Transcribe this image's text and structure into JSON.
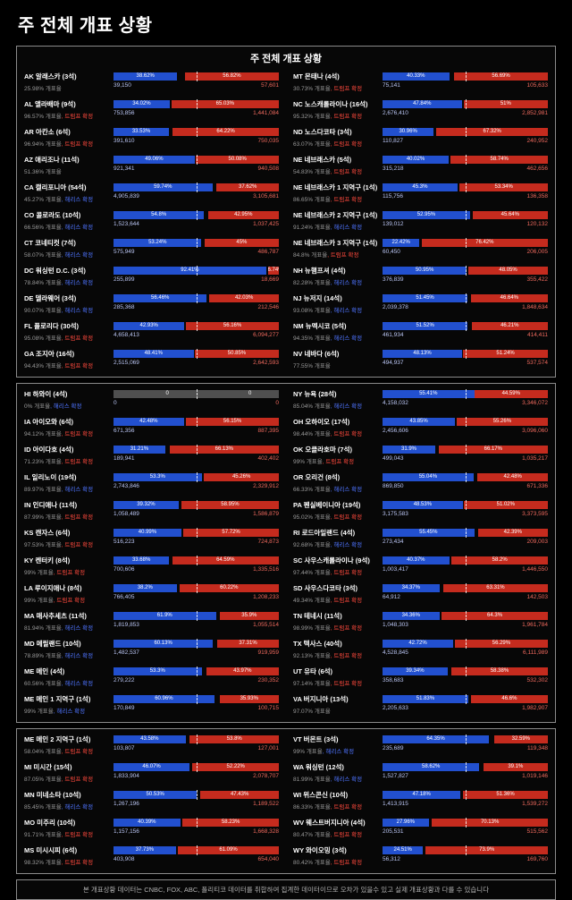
{
  "page_title": "주 전체 개표 상황",
  "panel_title": "주 전체 개표 상황",
  "footer": "본 개표상황 데이터는 CNBC, FOX, ABC, 폴리티코 데이터를 취합하여 집계한 데이터이므로 오차가 있을수 있고 실제 개표상황과 다를 수 있습니다",
  "labels": {
    "progress_label": "개표율",
    "harris_called": "해리스 확정",
    "trump_called": "트럼프 확정"
  },
  "colors": {
    "harris_blue": "#2250cf",
    "trump_red": "#c52b1e",
    "harris_votes_text": "#b9c4f2",
    "trump_votes_text": "#f06a5e",
    "harris_status_text": "#4f74ff",
    "trump_status_text": "#ff4a3d"
  },
  "chart_data": {
    "type": "bar",
    "orientation": "horizontal-stacked",
    "title": "주 전체 개표 상황",
    "series_names": [
      "해리스",
      "트럼프"
    ],
    "value_unit": "%",
    "panels": [
      {
        "left": [
          {
            "code": "AK",
            "name": "알래스카",
            "seats": "3석",
            "progress": "25.98%",
            "status": "none",
            "dem_pct": 38.62,
            "rep_pct": 56.82,
            "dem_votes": "39,150",
            "rep_votes": "57,601"
          },
          {
            "code": "AL",
            "name": "앨라배마",
            "seats": "9석",
            "progress": "96.57%",
            "status": "trump",
            "dem_pct": 34.02,
            "rep_pct": 65.03,
            "dem_votes": "753,856",
            "rep_votes": "1,441,084"
          },
          {
            "code": "AR",
            "name": "아칸소",
            "seats": "6석",
            "progress": "96.94%",
            "status": "trump",
            "dem_pct": 33.53,
            "rep_pct": 64.22,
            "dem_votes": "391,610",
            "rep_votes": "750,035"
          },
          {
            "code": "AZ",
            "name": "애리조나",
            "seats": "11석",
            "progress": "51.36%",
            "status": "none",
            "dem_pct": 49.06,
            "rep_pct": 50.08,
            "dem_votes": "921,341",
            "rep_votes": "940,508"
          },
          {
            "code": "CA",
            "name": "캘리포니아",
            "seats": "54석",
            "progress": "45.27%",
            "status": "harris",
            "dem_pct": 59.74,
            "rep_pct": 37.62,
            "dem_votes": "4,905,839",
            "rep_votes": "3,105,681"
          },
          {
            "code": "CO",
            "name": "콜로라도",
            "seats": "10석",
            "progress": "66.56%",
            "status": "harris",
            "dem_pct": 54.8,
            "rep_pct": 42.95,
            "dem_votes": "1,523,644",
            "rep_votes": "1,037,425"
          },
          {
            "code": "CT",
            "name": "코네티컷",
            "seats": "7석",
            "progress": "58.07%",
            "status": "harris",
            "dem_pct": 53.24,
            "rep_pct": 45,
            "dem_votes": "575,949",
            "rep_votes": "486,787"
          },
          {
            "code": "DC",
            "name": "워싱턴 D.C.",
            "seats": "3석",
            "progress": "78.84%",
            "status": "harris",
            "dem_pct": 92.41,
            "rep_pct": 6.74,
            "dem_votes": "255,899",
            "rep_votes": "18,669"
          },
          {
            "code": "DE",
            "name": "델라웨어",
            "seats": "3석",
            "progress": "90.07%",
            "status": "harris",
            "dem_pct": 56.46,
            "rep_pct": 42.03,
            "dem_votes": "285,368",
            "rep_votes": "212,546"
          },
          {
            "code": "FL",
            "name": "플로리다",
            "seats": "30석",
            "progress": "95.08%",
            "status": "trump",
            "dem_pct": 42.93,
            "rep_pct": 56.16,
            "dem_votes": "4,658,413",
            "rep_votes": "6,094,277"
          },
          {
            "code": "GA",
            "name": "조지아",
            "seats": "16석",
            "progress": "94.43%",
            "status": "trump",
            "dem_pct": 48.41,
            "rep_pct": 50.85,
            "dem_votes": "2,515,069",
            "rep_votes": "2,642,593"
          }
        ],
        "right": [
          {
            "code": "MT",
            "name": "몬태나",
            "seats": "4석",
            "progress": "30.73%",
            "status": "trump",
            "dem_pct": 40.33,
            "rep_pct": 56.69,
            "dem_votes": "75,141",
            "rep_votes": "105,633"
          },
          {
            "code": "NC",
            "name": "노스캐롤라이나",
            "seats": "16석",
            "progress": "95.32%",
            "status": "trump",
            "dem_pct": 47.84,
            "rep_pct": 51,
            "dem_votes": "2,676,410",
            "rep_votes": "2,852,981"
          },
          {
            "code": "ND",
            "name": "노스다코타",
            "seats": "3석",
            "progress": "63.07%",
            "status": "trump",
            "dem_pct": 30.96,
            "rep_pct": 67.32,
            "dem_votes": "110,827",
            "rep_votes": "240,952"
          },
          {
            "code": "NE",
            "name": "네브래스카",
            "seats": "5석",
            "progress": "54.83%",
            "status": "trump",
            "dem_pct": 40.02,
            "rep_pct": 58.74,
            "dem_votes": "315,218",
            "rep_votes": "462,656"
          },
          {
            "code": "NE",
            "name": "네브래스카 1 지역구",
            "seats": "1석",
            "progress": "86.65%",
            "status": "trump",
            "dem_pct": 45.3,
            "rep_pct": 53.34,
            "dem_votes": "115,756",
            "rep_votes": "136,358"
          },
          {
            "code": "NE",
            "name": "네브래스카 2 지역구",
            "seats": "1석",
            "progress": "91.24%",
            "status": "harris",
            "dem_pct": 52.95,
            "rep_pct": 45.64,
            "dem_votes": "139,012",
            "rep_votes": "120,132"
          },
          {
            "code": "NE",
            "name": "네브래스카 3 지역구",
            "seats": "1석",
            "progress": "84.8%",
            "status": "trump",
            "dem_pct": 22.42,
            "rep_pct": 76.42,
            "dem_votes": "60,450",
            "rep_votes": "206,005"
          },
          {
            "code": "NH",
            "name": "뉴햄프셔",
            "seats": "4석",
            "progress": "82.28%",
            "status": "harris",
            "dem_pct": 50.95,
            "rep_pct": 48.05,
            "dem_votes": "376,839",
            "rep_votes": "355,422"
          },
          {
            "code": "NJ",
            "name": "뉴저지",
            "seats": "14석",
            "progress": "93.08%",
            "status": "harris",
            "dem_pct": 51.45,
            "rep_pct": 46.64,
            "dem_votes": "2,039,378",
            "rep_votes": "1,848,634"
          },
          {
            "code": "NM",
            "name": "뉴멕시코",
            "seats": "5석",
            "progress": "94.35%",
            "status": "harris",
            "dem_pct": 51.52,
            "rep_pct": 46.21,
            "dem_votes": "461,934",
            "rep_votes": "414,411"
          },
          {
            "code": "NV",
            "name": "네바다",
            "seats": "6석",
            "progress": "77.55%",
            "status": "none",
            "dem_pct": 48.13,
            "rep_pct": 51.24,
            "dem_votes": "494,937",
            "rep_votes": "537,574"
          }
        ]
      },
      {
        "left": [
          {
            "code": "HI",
            "name": "하와이",
            "seats": "4석",
            "progress": "0%",
            "status": "harris",
            "gray": true,
            "dem_pct": 0,
            "rep_pct": 0,
            "dem_votes": "0",
            "rep_votes": "0"
          },
          {
            "code": "IA",
            "name": "아이오와",
            "seats": "6석",
            "progress": "94.12%",
            "status": "trump",
            "dem_pct": 42.48,
            "rep_pct": 56.15,
            "dem_votes": "671,356",
            "rep_votes": "887,395"
          },
          {
            "code": "ID",
            "name": "아이다호",
            "seats": "4석",
            "progress": "71.23%",
            "status": "trump",
            "dem_pct": 31.21,
            "rep_pct": 66.13,
            "dem_votes": "189,941",
            "rep_votes": "402,402"
          },
          {
            "code": "IL",
            "name": "일리노이",
            "seats": "19석",
            "progress": "89.97%",
            "status": "harris",
            "dem_pct": 53.3,
            "rep_pct": 45.26,
            "dem_votes": "2,743,846",
            "rep_votes": "2,329,912"
          },
          {
            "code": "IN",
            "name": "인디애나",
            "seats": "11석",
            "progress": "87.99%",
            "status": "trump",
            "dem_pct": 39.32,
            "rep_pct": 58.95,
            "dem_votes": "1,058,489",
            "rep_votes": "1,586,879"
          },
          {
            "code": "KS",
            "name": "캔자스",
            "seats": "6석",
            "progress": "97.53%",
            "status": "trump",
            "dem_pct": 40.99,
            "rep_pct": 57.72,
            "dem_votes": "516,223",
            "rep_votes": "724,873"
          },
          {
            "code": "KY",
            "name": "켄터키",
            "seats": "8석",
            "progress": "99%",
            "status": "trump",
            "dem_pct": 33.68,
            "rep_pct": 64.59,
            "dem_votes": "700,606",
            "rep_votes": "1,335,516"
          },
          {
            "code": "LA",
            "name": "루이지애나",
            "seats": "8석",
            "progress": "99%",
            "status": "trump",
            "dem_pct": 38.2,
            "rep_pct": 60.22,
            "dem_votes": "766,405",
            "rep_votes": "1,208,233"
          },
          {
            "code": "MA",
            "name": "매사추세츠",
            "seats": "11석",
            "progress": "81.94%",
            "status": "harris",
            "dem_pct": 61.9,
            "rep_pct": 35.9,
            "dem_votes": "1,819,853",
            "rep_votes": "1,055,514"
          },
          {
            "code": "MD",
            "name": "메릴랜드",
            "seats": "10석",
            "progress": "78.89%",
            "status": "harris",
            "dem_pct": 60.13,
            "rep_pct": 37.31,
            "dem_votes": "1,482,537",
            "rep_votes": "919,959"
          },
          {
            "code": "ME",
            "name": "메인",
            "seats": "4석",
            "progress": "60.56%",
            "status": "harris",
            "dem_pct": 53.3,
            "rep_pct": 43.97,
            "dem_votes": "279,222",
            "rep_votes": "230,352"
          },
          {
            "code": "ME",
            "name": "메인 1 지역구",
            "seats": "1석",
            "progress": "99%",
            "status": "harris",
            "dem_pct": 60.96,
            "rep_pct": 35.93,
            "dem_votes": "170,849",
            "rep_votes": "100,715"
          }
        ],
        "right": [
          {
            "code": "NY",
            "name": "뉴욕",
            "seats": "28석",
            "progress": "85.04%",
            "status": "harris",
            "dem_pct": 55.41,
            "rep_pct": 44.59,
            "dem_votes": "4,158,032",
            "rep_votes": "3,346,072"
          },
          {
            "code": "OH",
            "name": "오하이오",
            "seats": "17석",
            "progress": "98.44%",
            "status": "trump",
            "dem_pct": 43.85,
            "rep_pct": 55.26,
            "dem_votes": "2,456,606",
            "rep_votes": "3,096,060"
          },
          {
            "code": "OK",
            "name": "오클라호마",
            "seats": "7석",
            "progress": "99%",
            "status": "trump",
            "dem_pct": 31.9,
            "rep_pct": 66.17,
            "dem_votes": "499,043",
            "rep_votes": "1,035,217"
          },
          {
            "code": "OR",
            "name": "오리건",
            "seats": "8석",
            "progress": "66.33%",
            "status": "harris",
            "dem_pct": 55.04,
            "rep_pct": 42.48,
            "dem_votes": "869,850",
            "rep_votes": "671,336"
          },
          {
            "code": "PA",
            "name": "펜실베이니아",
            "seats": "19석",
            "progress": "95.02%",
            "status": "trump",
            "dem_pct": 48.53,
            "rep_pct": 51.02,
            "dem_votes": "3,175,583",
            "rep_votes": "3,373,595"
          },
          {
            "code": "RI",
            "name": "로드아일랜드",
            "seats": "4석",
            "progress": "92.68%",
            "status": "harris",
            "dem_pct": 55.45,
            "rep_pct": 42.39,
            "dem_votes": "273,434",
            "rep_votes": "209,003"
          },
          {
            "code": "SC",
            "name": "사우스캐롤라이나",
            "seats": "9석",
            "progress": "97.44%",
            "status": "trump",
            "dem_pct": 40.37,
            "rep_pct": 58.2,
            "dem_votes": "1,003,417",
            "rep_votes": "1,446,550"
          },
          {
            "code": "SD",
            "name": "사우스다코타",
            "seats": "3석",
            "progress": "49.34%",
            "status": "trump",
            "dem_pct": 34.37,
            "rep_pct": 63.31,
            "dem_votes": "64,912",
            "rep_votes": "142,503"
          },
          {
            "code": "TN",
            "name": "테네시",
            "seats": "11석",
            "progress": "98.99%",
            "status": "trump",
            "dem_pct": 34.36,
            "rep_pct": 64.3,
            "dem_votes": "1,048,303",
            "rep_votes": "1,961,784"
          },
          {
            "code": "TX",
            "name": "텍사스",
            "seats": "40석",
            "progress": "92.13%",
            "status": "trump",
            "dem_pct": 42.72,
            "rep_pct": 56.29,
            "dem_votes": "4,528,845",
            "rep_votes": "6,111,989"
          },
          {
            "code": "UT",
            "name": "유타",
            "seats": "6석",
            "progress": "97.14%",
            "status": "trump",
            "dem_pct": 39.34,
            "rep_pct": 58.38,
            "dem_votes": "358,683",
            "rep_votes": "532,302"
          },
          {
            "code": "VA",
            "name": "버지니아",
            "seats": "13석",
            "progress": "97.07%",
            "status": "none",
            "dem_pct": 51.83,
            "rep_pct": 46.6,
            "dem_votes": "2,205,633",
            "rep_votes": "1,982,907"
          }
        ]
      },
      {
        "left": [
          {
            "code": "ME",
            "name": "메인 2 지역구",
            "seats": "1석",
            "progress": "58.04%",
            "status": "trump",
            "dem_pct": 43.58,
            "rep_pct": 53.8,
            "dem_votes": "103,807",
            "rep_votes": "127,001"
          },
          {
            "code": "MI",
            "name": "미시간",
            "seats": "15석",
            "progress": "87.05%",
            "status": "trump",
            "dem_pct": 46.07,
            "rep_pct": 52.22,
            "dem_votes": "1,833,904",
            "rep_votes": "2,078,707"
          },
          {
            "code": "MN",
            "name": "미네소타",
            "seats": "10석",
            "progress": "85.45%",
            "status": "harris",
            "dem_pct": 50.53,
            "rep_pct": 47.43,
            "dem_votes": "1,267,196",
            "rep_votes": "1,189,522"
          },
          {
            "code": "MO",
            "name": "미주리",
            "seats": "10석",
            "progress": "91.71%",
            "status": "trump",
            "dem_pct": 40.39,
            "rep_pct": 58.23,
            "dem_votes": "1,157,156",
            "rep_votes": "1,668,328"
          },
          {
            "code": "MS",
            "name": "미시시피",
            "seats": "6석",
            "progress": "98.32%",
            "status": "trump",
            "dem_pct": 37.73,
            "rep_pct": 61.09,
            "dem_votes": "403,908",
            "rep_votes": "654,040"
          }
        ],
        "right": [
          {
            "code": "VT",
            "name": "버몬트",
            "seats": "3석",
            "progress": "99%",
            "status": "harris",
            "dem_pct": 64.35,
            "rep_pct": 32.59,
            "dem_votes": "235,689",
            "rep_votes": "119,348"
          },
          {
            "code": "WA",
            "name": "워싱턴",
            "seats": "12석",
            "progress": "81.99%",
            "status": "harris",
            "dem_pct": 58.62,
            "rep_pct": 39.1,
            "dem_votes": "1,527,827",
            "rep_votes": "1,019,146"
          },
          {
            "code": "WI",
            "name": "위스콘신",
            "seats": "10석",
            "progress": "86.33%",
            "status": "trump",
            "dem_pct": 47.18,
            "rep_pct": 51.36,
            "dem_votes": "1,413,915",
            "rep_votes": "1,539,272"
          },
          {
            "code": "WV",
            "name": "웨스트버지니아",
            "seats": "4석",
            "progress": "80.47%",
            "status": "trump",
            "dem_pct": 27.96,
            "rep_pct": 70.13,
            "dem_votes": "205,531",
            "rep_votes": "515,562"
          },
          {
            "code": "WY",
            "name": "와이오밍",
            "seats": "3석",
            "progress": "80.42%",
            "status": "trump",
            "dem_pct": 24.51,
            "rep_pct": 73.9,
            "dem_votes": "56,312",
            "rep_votes": "169,760"
          }
        ]
      }
    ]
  }
}
